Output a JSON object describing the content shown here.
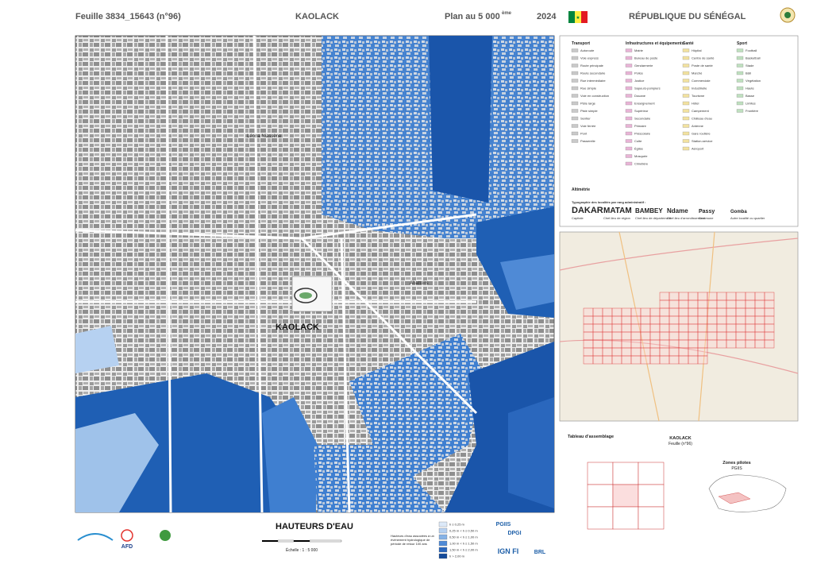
{
  "header": {
    "sheet": "Feuille 3834_15643 (n°96)",
    "city": "KAOLACK",
    "scale": "Plan au 5 000",
    "scale_suffix": "ème",
    "year": "2024",
    "country": "RÉPUBLIQUE DU SÉNÉGAL"
  },
  "map_labels": {
    "neighbourhood_1": "Léona Niassène",
    "city": "KAOLACK",
    "neighbourhood_2": "Abattoirs"
  },
  "legend": {
    "col1_title": "Transport",
    "col1_items": [
      "Autoroute",
      "Voie express",
      "Route principale",
      "Route secondaire",
      "Rue intermédiaire",
      "Rue simple",
      "Voie en construction",
      "Piste large",
      "Piste simple",
      "Sentier",
      "Voie ferrée",
      "Pont",
      "Passerelle"
    ],
    "col2_title": "Infrastructures et équipements",
    "col2_items": [
      "Mairie",
      "Bureau de poste",
      "Gendarmerie",
      "Police",
      "Justice",
      "Sapeurs-pompiers",
      "Douane",
      "Enseignement",
      "Supérieur",
      "Secondaire",
      "Primaire",
      "Préscolaire",
      "Culte",
      "Église",
      "Mosquée",
      "Cimetière"
    ],
    "col3_title": "Santé",
    "col3_items": [
      "Hôpital",
      "Centre de santé",
      "Poste de santé",
      "Marché",
      "Commerciale",
      "Industrielle",
      "Tourisme",
      "Hôtel",
      "Campement",
      "Château d'eau",
      "Antenne",
      "Gare routière",
      "Station-service",
      "Aéroport"
    ],
    "col4_title": "Sport",
    "col4_items": [
      "Football",
      "Basketball",
      "Stade",
      "Bâti",
      "Végétation",
      "Haute",
      "Basse",
      "Limites",
      "Frontière"
    ],
    "altimetry_title": "Altimétrie",
    "typo_title": "Typographie des localités par rang administratif :",
    "typo": [
      {
        "name": "DAKAR",
        "caption": "Capitale"
      },
      {
        "name": "MATAM",
        "caption": "Chef-lieu de région"
      },
      {
        "name": "BAMBEY",
        "caption": "Chef-lieu de département"
      },
      {
        "name": "Ndame",
        "caption": "Chef-lieu d'arrondissement"
      },
      {
        "name": "Passy",
        "caption": "Commune"
      },
      {
        "name": "Gomba",
        "caption": "Autre localité ou quartier"
      }
    ]
  },
  "assembly": {
    "title": "Tableau d'assemblage",
    "city": "KAOLACK",
    "sheet": "Feuille (n°96)",
    "zones_title": "Zones pilotes",
    "zones_sub": "PGIIS"
  },
  "footer": {
    "title": "HAUTEURS D'EAU",
    "description": "Hauteurs d'eau associées à un événement hydrologique de période de retour 100 ans",
    "scale": "Échelle : 1 : 5 000",
    "classes": [
      {
        "label": "h ≤ 0,25 m",
        "color": "#dce9f8"
      },
      {
        "label": "0,25 m < h ≤ 0,50 m",
        "color": "#b6d1f1"
      },
      {
        "label": "0,50 m < h ≤ 1,00 m",
        "color": "#86b2e6"
      },
      {
        "label": "1,00 m < h ≤ 1,50 m",
        "color": "#4f8ad6"
      },
      {
        "label": "1,50 m < h ≤ 2,00 m",
        "color": "#2a67bd"
      },
      {
        "label": "h > 2,00 m",
        "color": "#144a9a"
      }
    ],
    "logos": [
      "AFD",
      "PGIIS",
      "DPGI",
      "IGN FI",
      "BRL"
    ]
  }
}
